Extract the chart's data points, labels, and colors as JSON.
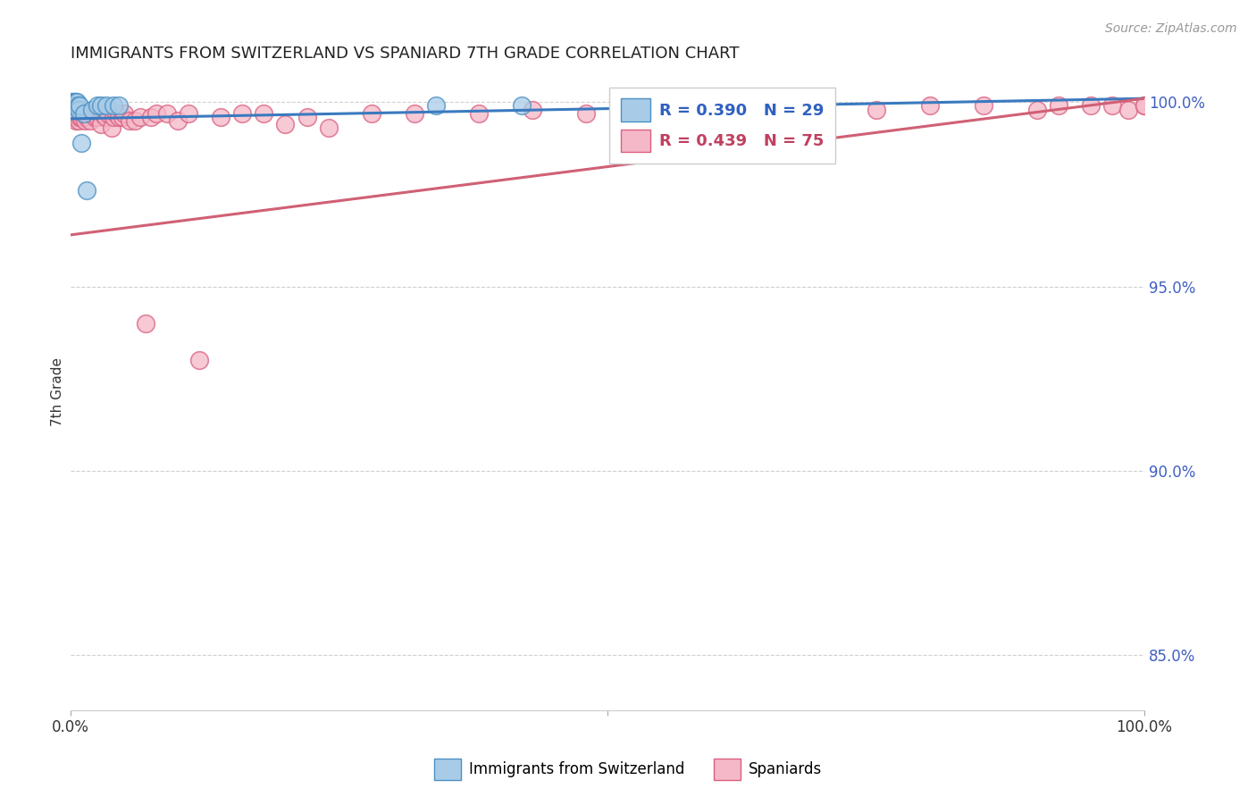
{
  "title": "IMMIGRANTS FROM SWITZERLAND VS SPANIARD 7TH GRADE CORRELATION CHART",
  "source": "Source: ZipAtlas.com",
  "ylabel": "7th Grade",
  "right_yticks": [
    "100.0%",
    "95.0%",
    "90.0%",
    "85.0%"
  ],
  "right_ytick_vals": [
    1.0,
    0.95,
    0.9,
    0.85
  ],
  "legend_label1": "Immigrants from Switzerland",
  "legend_label2": "Spaniards",
  "R1": 0.39,
  "N1": 29,
  "R2": 0.439,
  "N2": 75,
  "color_blue_fill": "#a8cce8",
  "color_pink_fill": "#f5b8c8",
  "color_blue_edge": "#4a90c4",
  "color_pink_edge": "#d96080",
  "color_blue_line": "#3a7abf",
  "color_pink_line": "#d06075",
  "color_blue_text": "#3060c0",
  "color_pink_text": "#c04060",
  "color_right_axis": "#4060c0",
  "background_color": "#ffffff",
  "grid_color": "#d0d0d0",
  "xlim": [
    0.0,
    1.0
  ],
  "ylim": [
    0.835,
    1.008
  ],
  "blue_x": [
    0.001,
    0.001,
    0.002,
    0.002,
    0.002,
    0.003,
    0.003,
    0.003,
    0.004,
    0.004,
    0.004,
    0.005,
    0.005,
    0.006,
    0.006,
    0.007,
    0.007,
    0.008,
    0.01,
    0.012,
    0.015,
    0.02,
    0.025,
    0.028,
    0.033,
    0.04,
    0.045,
    0.34,
    0.42
  ],
  "blue_y": [
    1.0,
    0.999,
    1.0,
    0.999,
    0.999,
    1.0,
    0.999,
    0.998,
    1.0,
    0.999,
    0.999,
    1.0,
    0.999,
    0.999,
    1.0,
    0.999,
    0.998,
    0.999,
    0.989,
    0.997,
    0.976,
    0.998,
    0.999,
    0.999,
    0.999,
    0.999,
    0.999,
    0.999,
    0.999
  ],
  "pink_x": [
    0.001,
    0.001,
    0.002,
    0.002,
    0.003,
    0.003,
    0.004,
    0.004,
    0.005,
    0.005,
    0.006,
    0.006,
    0.007,
    0.007,
    0.008,
    0.009,
    0.01,
    0.01,
    0.012,
    0.013,
    0.015,
    0.015,
    0.017,
    0.018,
    0.02,
    0.022,
    0.025,
    0.025,
    0.027,
    0.028,
    0.03,
    0.032,
    0.035,
    0.038,
    0.04,
    0.042,
    0.045,
    0.048,
    0.05,
    0.055,
    0.06,
    0.065,
    0.07,
    0.075,
    0.08,
    0.09,
    0.1,
    0.11,
    0.12,
    0.14,
    0.16,
    0.18,
    0.2,
    0.22,
    0.24,
    0.28,
    0.32,
    0.38,
    0.43,
    0.48,
    0.52,
    0.56,
    0.6,
    0.65,
    0.7,
    0.75,
    0.8,
    0.85,
    0.9,
    0.92,
    0.95,
    0.97,
    0.985,
    1.0,
    1.0
  ],
  "pink_y": [
    0.998,
    0.996,
    0.998,
    0.997,
    0.998,
    0.996,
    0.997,
    0.996,
    0.997,
    0.995,
    0.997,
    0.996,
    0.997,
    0.995,
    0.996,
    0.997,
    0.997,
    0.996,
    0.997,
    0.995,
    0.997,
    0.996,
    0.997,
    0.995,
    0.997,
    0.996,
    0.997,
    0.996,
    0.997,
    0.994,
    0.997,
    0.996,
    0.997,
    0.993,
    0.996,
    0.997,
    0.996,
    0.996,
    0.997,
    0.995,
    0.995,
    0.996,
    0.94,
    0.996,
    0.997,
    0.997,
    0.995,
    0.997,
    0.93,
    0.996,
    0.997,
    0.997,
    0.994,
    0.996,
    0.993,
    0.997,
    0.997,
    0.997,
    0.998,
    0.997,
    0.997,
    0.993,
    0.997,
    0.997,
    0.997,
    0.998,
    0.999,
    0.999,
    0.998,
    0.999,
    0.999,
    0.999,
    0.998,
    0.999,
    0.999
  ],
  "blue_trendline_x": [
    0.0,
    1.0
  ],
  "blue_trendline_y": [
    0.9955,
    1.001
  ],
  "pink_trendline_x": [
    0.0,
    1.0
  ],
  "pink_trendline_y": [
    0.964,
    1.001
  ]
}
